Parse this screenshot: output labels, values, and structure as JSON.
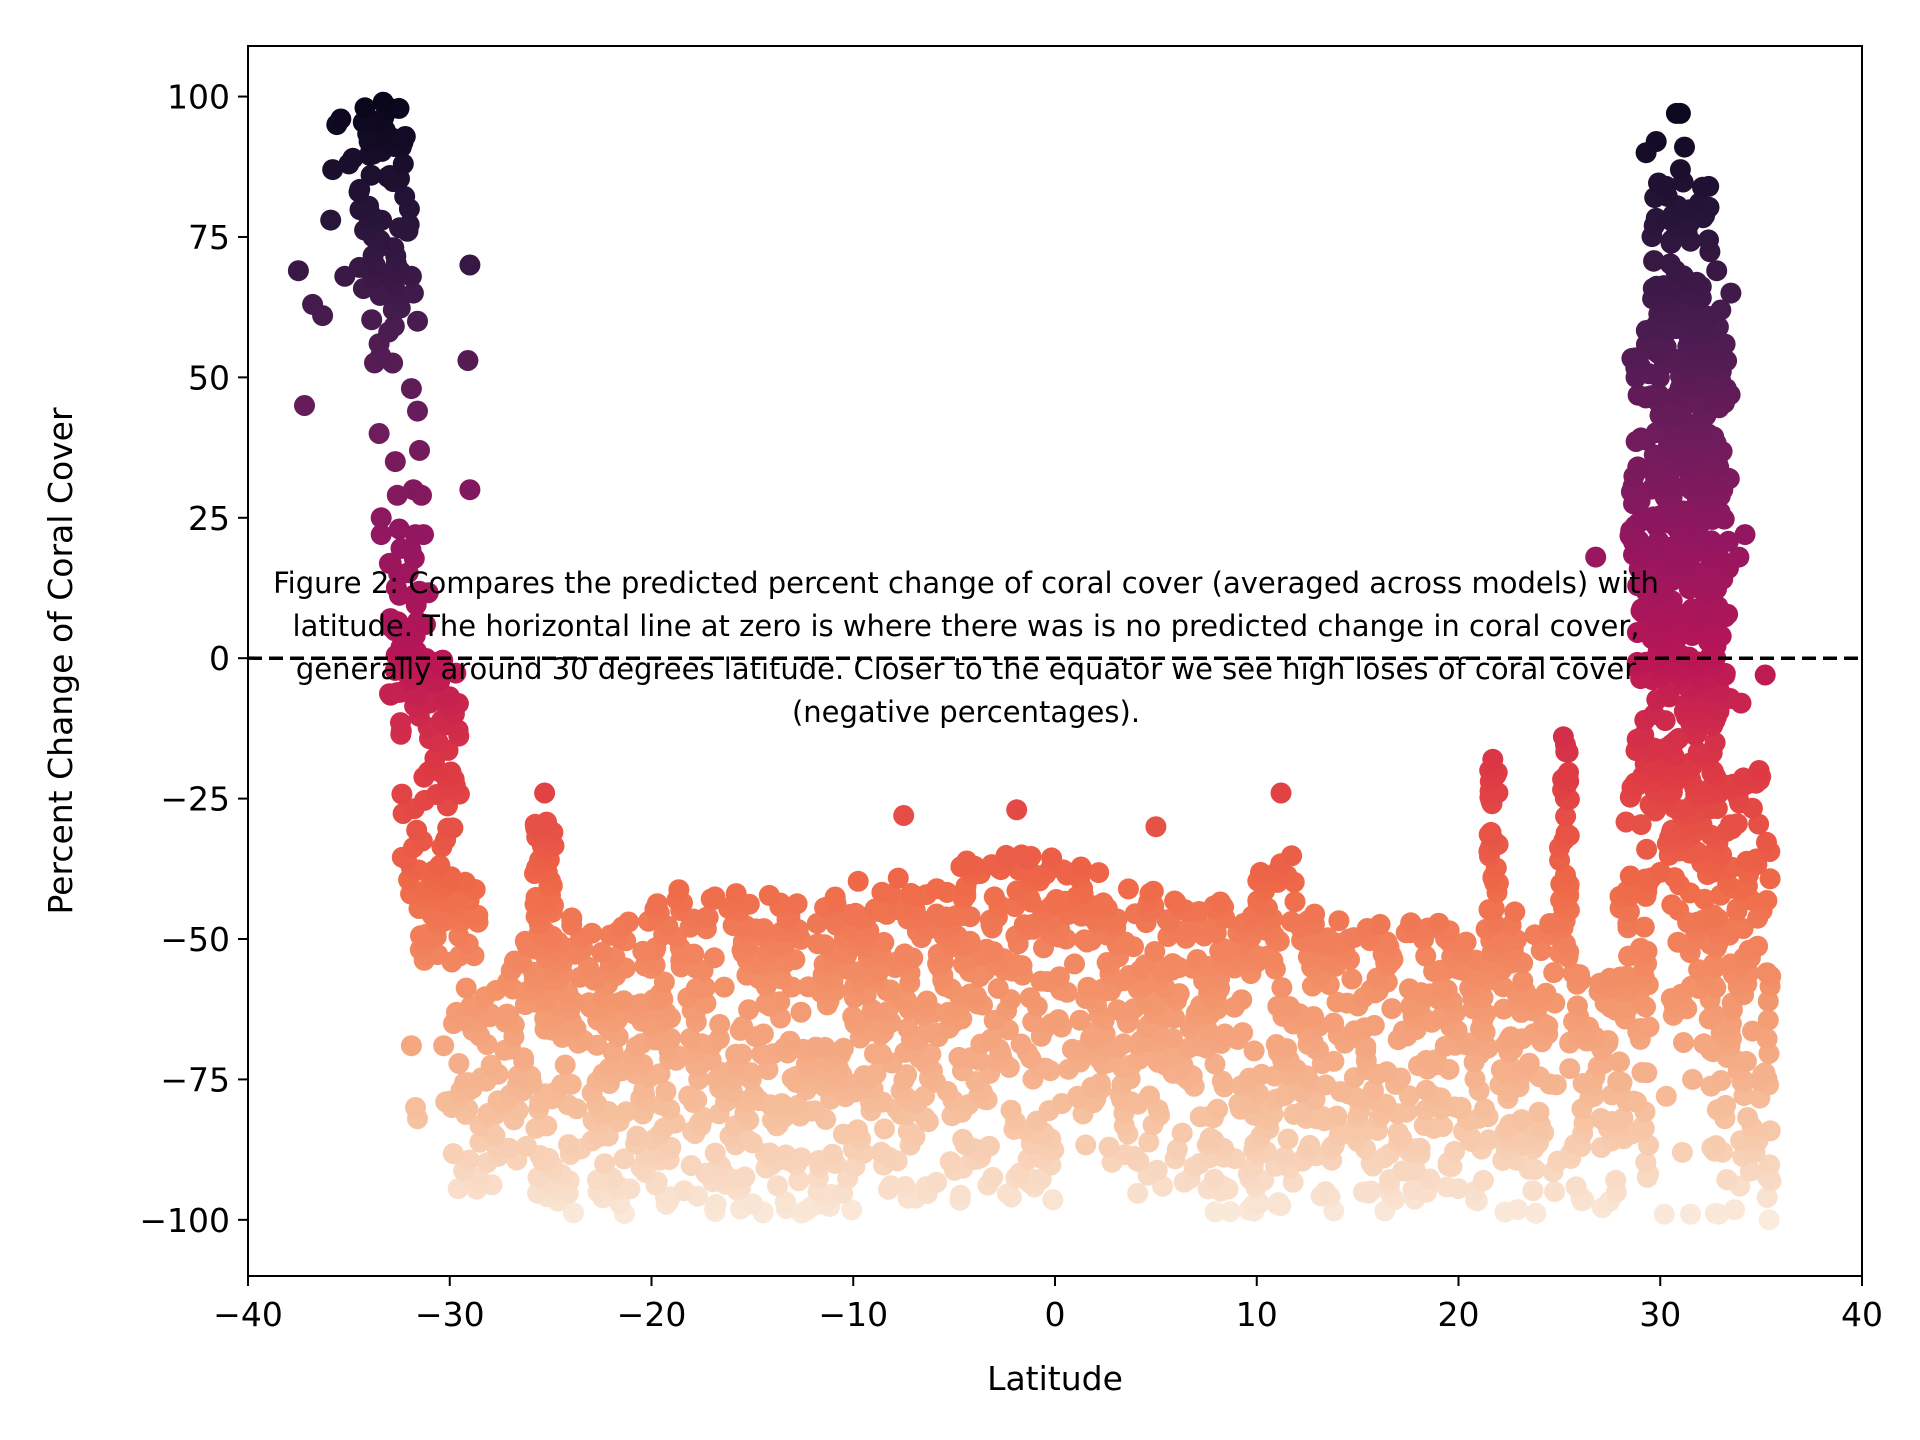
{
  "chart_data": {
    "type": "scatter",
    "title": "",
    "xlabel": "Latitude",
    "ylabel": "Percent Change of Coral Cover",
    "xlim": [
      -40,
      40
    ],
    "ylim": [
      -110,
      109
    ],
    "x_ticks": [
      -40,
      -30,
      -20,
      -10,
      0,
      10,
      20,
      30,
      40
    ],
    "y_ticks": [
      -100,
      -75,
      -50,
      -25,
      0,
      25,
      50,
      75,
      100
    ],
    "x_tick_labels": [
      "−40",
      "−30",
      "−20",
      "−10",
      "0",
      "10",
      "20",
      "30",
      "40"
    ],
    "y_tick_labels": [
      "−100",
      "−75",
      "−50",
      "−25",
      "0",
      "25",
      "50",
      "75",
      "100"
    ],
    "grid": false,
    "colormap": "rocket (dark purple at +100 to cream at −100, mapped to y)",
    "reference_line": {
      "y": 0,
      "style": "dashed",
      "color": "#000000"
    },
    "caption": [
      "Figure 2: Compares the predicted percent change of coral cover (averaged across models) with",
      "latitude. The horizontal line at zero is where there was is no predicted change in coral cover,",
      "generally around 30 degrees latitude. Closer to the equator we see high loses of coral cover",
      "(negative percentages)."
    ],
    "series": [
      {
        "values": [
          [
            -37.5,
            69
          ],
          [
            -37.2,
            45
          ],
          [
            -36.8,
            63
          ],
          [
            -36.3,
            61
          ],
          [
            -35.9,
            78
          ],
          [
            -35.8,
            87
          ],
          [
            -35.6,
            95
          ],
          [
            -35.4,
            96
          ],
          [
            -35.2,
            68
          ],
          [
            -35.0,
            88
          ],
          [
            -34.8,
            89
          ],
          [
            -34.5,
            83
          ],
          [
            -34.2,
            98
          ],
          [
            -34.0,
            92
          ],
          [
            -33.9,
            86
          ],
          [
            -33.8,
            75
          ],
          [
            -33.7,
            70
          ],
          [
            -33.5,
            56
          ],
          [
            -33.5,
            40
          ],
          [
            -33.4,
            25
          ],
          [
            -33.4,
            22
          ],
          [
            -33.3,
            99
          ],
          [
            -33.2,
            94
          ],
          [
            -33.0,
            68
          ],
          [
            -32.8,
            62
          ],
          [
            -32.7,
            35
          ],
          [
            -32.6,
            29
          ],
          [
            -32.5,
            23
          ],
          [
            -32.4,
            91
          ],
          [
            -32.3,
            88
          ],
          [
            -32.1,
            76
          ],
          [
            -32.0,
            80
          ],
          [
            -31.9,
            48
          ],
          [
            -31.9,
            68
          ],
          [
            -31.8,
            65
          ],
          [
            -31.8,
            30
          ],
          [
            -31.7,
            22
          ],
          [
            -31.6,
            60
          ],
          [
            -31.6,
            44
          ],
          [
            -31.5,
            37
          ],
          [
            -31.4,
            29
          ],
          [
            -31.3,
            22
          ],
          [
            -31.2,
            6
          ],
          [
            -31.1,
            -2
          ],
          [
            -31.0,
            -8
          ],
          [
            -29.0,
            70
          ],
          [
            -29.1,
            53
          ],
          [
            -29.0,
            30
          ],
          [
            -28.6,
            -47
          ],
          [
            -30.3,
            -69
          ],
          [
            -30.2,
            -79
          ],
          [
            -29.9,
            -80
          ],
          [
            -31.9,
            -69
          ],
          [
            -31.6,
            -82
          ],
          [
            -31.7,
            -80
          ],
          [
            -25.3,
            -24
          ],
          [
            -7.5,
            -28
          ],
          [
            -1.9,
            -27
          ],
          [
            5.0,
            -30
          ],
          [
            11.2,
            -24
          ],
          [
            26.8,
            18
          ],
          [
            21.7,
            -18
          ],
          [
            25.2,
            -14
          ],
          [
            29.3,
            90
          ],
          [
            29.8,
            92
          ],
          [
            30.3,
            84
          ],
          [
            30.8,
            97
          ],
          [
            31.0,
            97
          ],
          [
            31.2,
            91
          ],
          [
            31.0,
            87
          ],
          [
            32.4,
            84
          ],
          [
            29.7,
            77
          ],
          [
            30.5,
            78
          ],
          [
            31.6,
            65
          ],
          [
            32.8,
            69
          ],
          [
            33.0,
            62
          ],
          [
            33.5,
            65
          ],
          [
            34.2,
            22
          ],
          [
            33.9,
            18
          ],
          [
            28.8,
            50
          ],
          [
            29.5,
            55
          ],
          [
            30.2,
            45
          ],
          [
            31.5,
            40
          ],
          [
            32.2,
            35
          ],
          [
            33.1,
            30
          ],
          [
            29.0,
            28
          ],
          [
            30.1,
            10
          ],
          [
            28.9,
            -2
          ],
          [
            29.7,
            -10
          ],
          [
            31.3,
            -5
          ],
          [
            32.6,
            -12
          ],
          [
            34.0,
            -8
          ],
          [
            35.2,
            -3
          ],
          [
            34.9,
            -20
          ],
          [
            28.6,
            -23
          ],
          [
            28.4,
            -48
          ],
          [
            29.2,
            -55
          ],
          [
            33.8,
            -45
          ],
          [
            34.4,
            -52
          ],
          [
            30.7,
            -62
          ],
          [
            31.6,
            -75
          ],
          [
            30.3,
            -78
          ],
          [
            31.1,
            -88
          ],
          [
            33.2,
            -82
          ],
          [
            34.7,
            -88
          ],
          [
            35.3,
            -96
          ],
          [
            35.4,
            -100
          ],
          [
            32.9,
            -99
          ],
          [
            31.5,
            -99
          ],
          [
            30.2,
            -99
          ]
        ]
      }
    ],
    "point_clouds": [
      {
        "lat": [
          -34.5,
          -32.0
        ],
        "y_top": 98,
        "y_bottom": 52
      },
      {
        "lat": [
          -33.2,
          -31.0
        ],
        "y_top": 20,
        "y_bottom": -12
      },
      {
        "lat": [
          -32.5,
          -29.5
        ],
        "y_top": 0,
        "y_bottom": -45
      },
      {
        "lat": [
          -31.5,
          -28.5
        ],
        "y_top": -38,
        "y_bottom": -55
      },
      {
        "lat": [
          -30.0,
          -27.5
        ],
        "y_top": -58,
        "y_bottom": -95
      },
      {
        "lat": [
          -27.5,
          -25.0
        ],
        "y_top": -50,
        "y_bottom": -97
      },
      {
        "lat": [
          -25.8,
          -24.8
        ],
        "y_top": -28,
        "y_bottom": -50
      },
      {
        "lat": [
          -25.0,
          -20.0
        ],
        "y_top": -45,
        "y_bottom": -99
      },
      {
        "lat": [
          -20.0,
          -15.0
        ],
        "y_top": -41,
        "y_bottom": -99
      },
      {
        "lat": [
          -15.0,
          -10.0
        ],
        "y_top": -42,
        "y_bottom": -99
      },
      {
        "lat": [
          -10.0,
          -5.0
        ],
        "y_top": -39,
        "y_bottom": -98
      },
      {
        "lat": [
          -5.0,
          0.0
        ],
        "y_top": -35,
        "y_bottom": -97
      },
      {
        "lat": [
          0.0,
          2.5
        ],
        "y_top": -37,
        "y_bottom": -87
      },
      {
        "lat": [
          2.5,
          5.0
        ],
        "y_top": -40,
        "y_bottom": -97
      },
      {
        "lat": [
          5.0,
          10.0
        ],
        "y_top": -43,
        "y_bottom": -99
      },
      {
        "lat": [
          10.0,
          12.0
        ],
        "y_top": -35,
        "y_bottom": -99
      },
      {
        "lat": [
          12.0,
          15.0
        ],
        "y_top": -45,
        "y_bottom": -99
      },
      {
        "lat": [
          15.0,
          20.0
        ],
        "y_top": -47,
        "y_bottom": -99
      },
      {
        "lat": [
          20.0,
          21.5
        ],
        "y_top": -48,
        "y_bottom": -99
      },
      {
        "lat": [
          21.5,
          22.0
        ],
        "y_top": -19,
        "y_bottom": -60
      },
      {
        "lat": [
          22.0,
          25.0
        ],
        "y_top": -45,
        "y_bottom": -99
      },
      {
        "lat": [
          25.0,
          25.5
        ],
        "y_top": -15,
        "y_bottom": -55
      },
      {
        "lat": [
          25.5,
          28.0
        ],
        "y_top": -55,
        "y_bottom": -99
      },
      {
        "lat": [
          28.0,
          29.5
        ],
        "y_top": -22,
        "y_bottom": -98
      },
      {
        "lat": [
          28.5,
          30.5
        ],
        "y_top": 60,
        "y_bottom": -25
      },
      {
        "lat": [
          29.5,
          32.5
        ],
        "y_top": 85,
        "y_bottom": -40
      },
      {
        "lat": [
          30.5,
          33.0
        ],
        "y_top": 65,
        "y_bottom": -70
      },
      {
        "lat": [
          31.5,
          33.5
        ],
        "y_top": 60,
        "y_bottom": -20
      },
      {
        "lat": [
          32.5,
          35.5
        ],
        "y_top": -20,
        "y_bottom": -99
      }
    ]
  }
}
